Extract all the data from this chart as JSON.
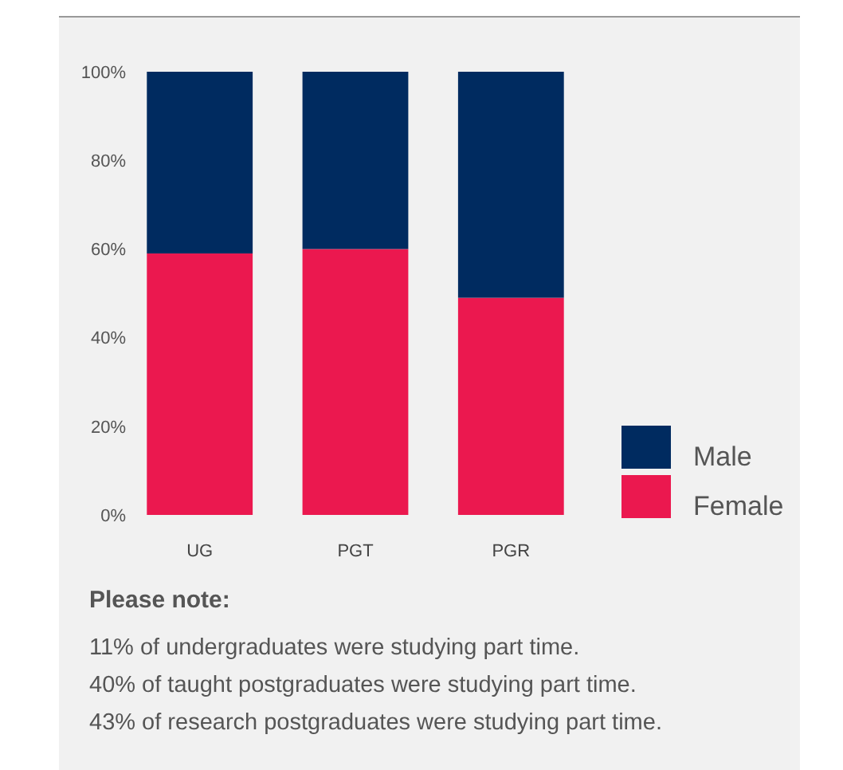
{
  "chart_data": {
    "type": "bar",
    "stacked": true,
    "categories": [
      "UG",
      "PGT",
      "PGR"
    ],
    "series": [
      {
        "name": "Female",
        "color": "#eb184f",
        "values": [
          59,
          60,
          49
        ]
      },
      {
        "name": "Male",
        "color": "#002b60",
        "values": [
          41,
          40,
          51
        ]
      }
    ],
    "ylim": [
      0,
      100
    ],
    "yticks": [
      {
        "value": 0,
        "label": "0%"
      },
      {
        "value": 20,
        "label": "20%"
      },
      {
        "value": 40,
        "label": "40%"
      },
      {
        "value": 60,
        "label": "60%"
      },
      {
        "value": 80,
        "label": "80%"
      },
      {
        "value": 100,
        "label": "100%"
      }
    ],
    "grid": false,
    "legend": "right",
    "annotations": [
      "Please note:",
      "11% of undergraduates were studying part time.",
      "40% of taught postgraduates were studying part time.",
      "43% of research postgraduates were studying part time."
    ]
  }
}
